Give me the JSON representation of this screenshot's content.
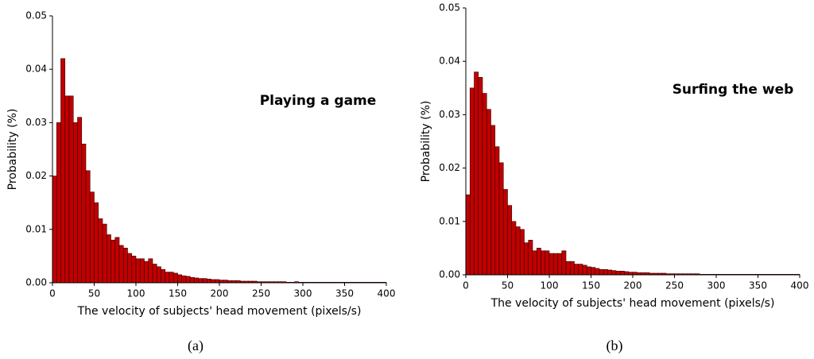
{
  "chart_data": [
    {
      "type": "histogram",
      "title": "Playing a game",
      "caption": "(a)",
      "xlabel": "The velocity of subjects' head movement (pixels/s)",
      "ylabel": "Probability (%)",
      "color": "#c00000",
      "bins": [
        0,
        5,
        10,
        15,
        20,
        25,
        30,
        35,
        40,
        45,
        50,
        55,
        60,
        65,
        70,
        75,
        80,
        85,
        90,
        95,
        100,
        105,
        110,
        115,
        120,
        125,
        130,
        135,
        140,
        145,
        150,
        155,
        160,
        165,
        170,
        175,
        180,
        185,
        190,
        195,
        200,
        205,
        210,
        215,
        220,
        225,
        230,
        235,
        240,
        245,
        250,
        255,
        260,
        265,
        270,
        275,
        280,
        285,
        290,
        295,
        300,
        305,
        310,
        315,
        320,
        325,
        330,
        335,
        340,
        345,
        350,
        355,
        360,
        365,
        370,
        375,
        380,
        385,
        390,
        395,
        400
      ],
      "values": [
        0.02,
        0.03,
        0.042,
        0.035,
        0.035,
        0.03,
        0.031,
        0.026,
        0.021,
        0.017,
        0.015,
        0.012,
        0.011,
        0.009,
        0.008,
        0.0085,
        0.007,
        0.0065,
        0.0055,
        0.005,
        0.0045,
        0.0045,
        0.004,
        0.0045,
        0.0035,
        0.003,
        0.0025,
        0.002,
        0.002,
        0.0018,
        0.0015,
        0.0013,
        0.0012,
        0.001,
        0.0009,
        0.0008,
        0.0008,
        0.0007,
        0.0006,
        0.0006,
        0.0005,
        0.0005,
        0.0004,
        0.0004,
        0.0004,
        0.0003,
        0.0003,
        0.0003,
        0.0003,
        0.0002,
        0.0002,
        0.0002,
        0.0002,
        0.0002,
        0.0002,
        0.0002,
        0.0001,
        0.0001,
        0.0002,
        0.0001,
        0.0001,
        0.0001,
        0.0001,
        0.0001,
        0.0001,
        0.0001,
        0.0001,
        0.0001,
        0.0001,
        0.0001,
        0.0001,
        0.0001,
        0.0001,
        0.0001,
        0.0001,
        0.0001,
        0.0001,
        0.0001,
        0.0001,
        0.0001
      ],
      "xlim": [
        0,
        400
      ],
      "xticks": [
        0,
        50,
        100,
        150,
        200,
        250,
        300,
        350,
        400
      ],
      "ylim": [
        0,
        0.05
      ],
      "yticks": [
        {
          "value": 0,
          "label": "0.00"
        },
        0.01,
        0.02,
        0.03,
        0.04,
        0.05
      ]
    },
    {
      "type": "histogram",
      "title": "Surfing the web",
      "caption": "(b)",
      "xlabel": "The velocity of subjects' head movement (pixels/s)",
      "ylabel": "Probability (%)",
      "color": "#c00000",
      "bins": [
        0,
        5,
        10,
        15,
        20,
        25,
        30,
        35,
        40,
        45,
        50,
        55,
        60,
        65,
        70,
        75,
        80,
        85,
        90,
        95,
        100,
        105,
        110,
        115,
        120,
        125,
        130,
        135,
        140,
        145,
        150,
        155,
        160,
        165,
        170,
        175,
        180,
        185,
        190,
        195,
        200,
        205,
        210,
        215,
        220,
        225,
        230,
        235,
        240,
        245,
        250,
        255,
        260,
        265,
        270,
        275,
        280,
        285,
        290,
        295,
        300,
        305,
        310,
        315,
        320,
        325,
        330,
        335,
        340,
        345,
        350,
        355,
        360,
        365,
        370,
        375,
        380,
        385,
        390,
        395,
        400
      ],
      "values": [
        0.015,
        0.035,
        0.038,
        0.037,
        0.034,
        0.031,
        0.028,
        0.024,
        0.021,
        0.016,
        0.013,
        0.01,
        0.009,
        0.0085,
        0.006,
        0.0065,
        0.0045,
        0.005,
        0.0045,
        0.0045,
        0.004,
        0.004,
        0.004,
        0.0045,
        0.0025,
        0.0025,
        0.002,
        0.002,
        0.0018,
        0.0015,
        0.0014,
        0.0012,
        0.001,
        0.001,
        0.0009,
        0.0008,
        0.0007,
        0.0007,
        0.0006,
        0.0005,
        0.0005,
        0.0004,
        0.0004,
        0.0004,
        0.0003,
        0.0003,
        0.0003,
        0.0003,
        0.0002,
        0.0002,
        0.0002,
        0.0002,
        0.0002,
        0.0002,
        0.0002,
        0.0002,
        0.0001,
        0.0001,
        0.0001,
        0.0001,
        0.0001,
        0.0001,
        0.0001,
        0.0001,
        0.0001,
        0.0001,
        0.0001,
        0.0001,
        0.0001,
        0.0001,
        0.0001,
        0.0001,
        0.0001,
        0.0001,
        0.0001,
        0.0001,
        0.0001,
        0.0001,
        0.0001,
        0.0001
      ],
      "xlim": [
        0,
        400
      ],
      "xticks": [
        0,
        50,
        100,
        150,
        200,
        250,
        300,
        350,
        400
      ],
      "ylim": [
        0,
        0.05
      ],
      "yticks": [
        {
          "value": 0,
          "label": "0.00"
        },
        0.01,
        0.02,
        0.03,
        0.04,
        0.05
      ]
    }
  ]
}
